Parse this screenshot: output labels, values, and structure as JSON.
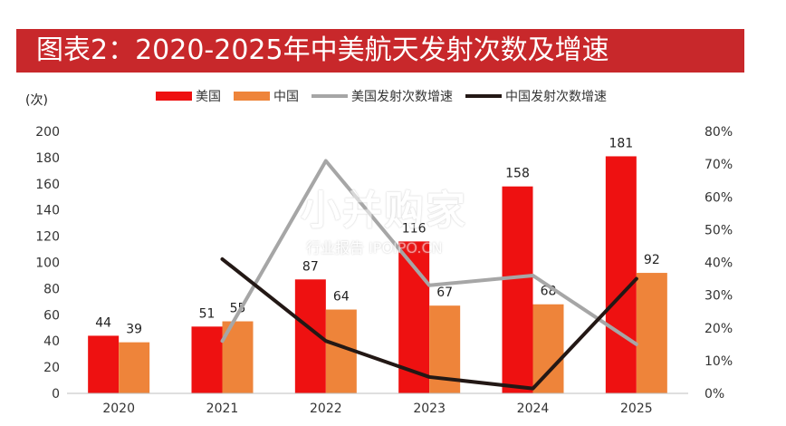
{
  "title": "图表2：2020-2025年中美航天发射次数及增速",
  "unit_label": "(次)",
  "watermark": {
    "main": "小并购家",
    "sub": "行业报告 IPOIPO.CN"
  },
  "colors": {
    "title_bg": "#c8282b",
    "usa_bar": "#ee1111",
    "china_bar": "#ee843a",
    "usa_line": "#a6a6a6",
    "china_line": "#231815"
  },
  "chart_data": {
    "type": "bar",
    "categories": [
      "2020",
      "2021",
      "2022",
      "2023",
      "2024",
      "2025"
    ],
    "series": [
      {
        "name": "美国",
        "kind": "bar",
        "values": [
          44,
          51,
          87,
          116,
          158,
          181
        ]
      },
      {
        "name": "中国",
        "kind": "bar",
        "values": [
          39,
          55,
          64,
          67,
          68,
          92
        ]
      },
      {
        "name": "美国发射次数增速",
        "kind": "line",
        "axis": "right",
        "values": [
          null,
          16,
          71,
          33,
          36,
          15
        ]
      },
      {
        "name": "中国发射次数增速",
        "kind": "line",
        "axis": "right",
        "values": [
          null,
          41,
          16,
          5,
          1.5,
          35
        ]
      }
    ],
    "ylim_left": [
      0,
      200
    ],
    "yticks_left": [
      0,
      20,
      40,
      60,
      80,
      100,
      120,
      140,
      160,
      180,
      200
    ],
    "ylim_right": [
      0,
      80
    ],
    "yticks_right": [
      "0%",
      "10%",
      "20%",
      "30%",
      "40%",
      "50%",
      "60%",
      "70%",
      "80%"
    ],
    "legend": "top"
  }
}
